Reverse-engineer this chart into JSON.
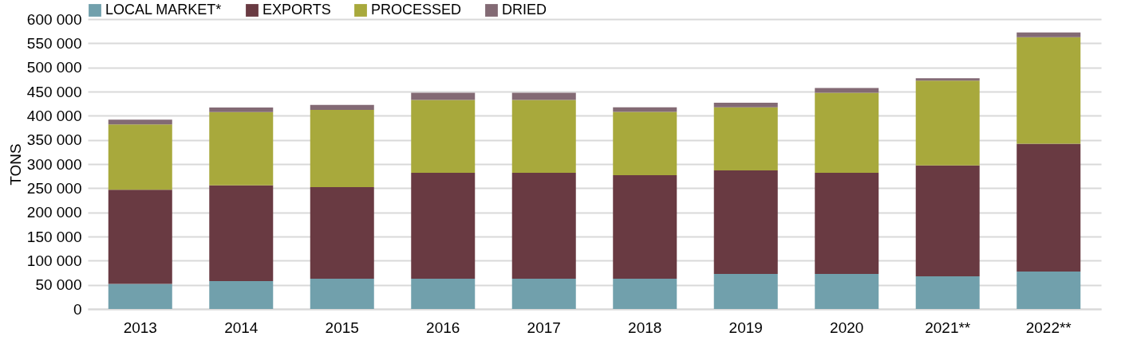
{
  "chart_data": {
    "type": "bar",
    "stacked": true,
    "ylabel": "TONS",
    "legend": "top",
    "grid": "y",
    "categories": [
      "2013",
      "2014",
      "2015",
      "2016",
      "2017",
      "2018",
      "2019",
      "2020",
      "2021**",
      "2022**"
    ],
    "ylim": [
      0,
      600000
    ],
    "yticks": [
      {
        "value": 0,
        "label": "0"
      },
      {
        "value": 50000,
        "label": "50 000"
      },
      {
        "value": 100000,
        "label": "100 000"
      },
      {
        "value": 150000,
        "label": "150 000"
      },
      {
        "value": 200000,
        "label": "200 000"
      },
      {
        "value": 250000,
        "label": "250 000"
      },
      {
        "value": 300000,
        "label": "300 000"
      },
      {
        "value": 350000,
        "label": "350 000"
      },
      {
        "value": 400000,
        "label": "400 000"
      },
      {
        "value": 450000,
        "label": "450 000"
      },
      {
        "value": 500000,
        "label": "500 000"
      },
      {
        "value": 550000,
        "label": "550 000"
      },
      {
        "value": 600000,
        "label": "600 000"
      }
    ],
    "series": [
      {
        "name": "LOCAL MARKET*",
        "color": "#71a0ac",
        "values": [
          52000,
          57500,
          62500,
          62500,
          62500,
          62500,
          72500,
          72500,
          67500,
          77500
        ]
      },
      {
        "name": "EXPORTS",
        "color": "#693a42",
        "values": [
          195000,
          198500,
          189500,
          219500,
          219500,
          214500,
          214500,
          209500,
          229500,
          264500
        ]
      },
      {
        "name": "PROCESSED",
        "color": "#a8a93c",
        "values": [
          135000,
          151500,
          160000,
          150500,
          150500,
          131000,
          130500,
          165500,
          175500,
          220500
        ]
      },
      {
        "name": "DRIED",
        "color": "#836a74",
        "values": [
          10000,
          9500,
          10500,
          15000,
          15000,
          9500,
          9500,
          10000,
          5000,
          10000
        ]
      }
    ]
  }
}
